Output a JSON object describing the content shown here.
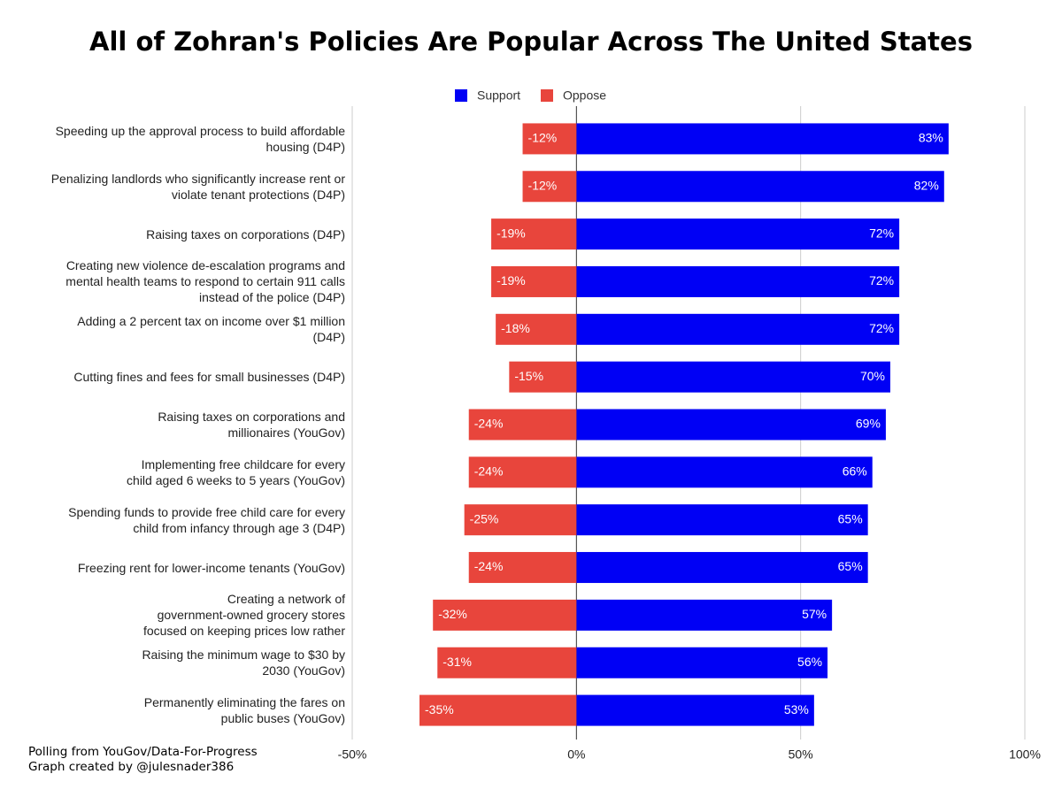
{
  "chart_data": {
    "type": "diverging_bar",
    "title": "All of Zohran's Policies Are Popular Across The United States",
    "categories": [
      "Speeding up the approval process to build affordable\nhousing (D4P)",
      "Penalizing landlords who significantly increase rent or\nviolate tenant protections (D4P)",
      "Raising taxes on corporations (D4P)",
      "Creating new violence de-escalation programs and\nmental health teams to respond to certain 911 calls\ninstead of the police (D4P)",
      "Adding a 2 percent tax on income over $1 million\n(D4P)",
      "Cutting fines and fees for small businesses (D4P)",
      "Raising taxes on corporations and\nmillionaires (YouGov)",
      "Implementing free childcare for every\nchild aged 6 weeks to 5 years (YouGov)",
      "Spending funds to provide free child care for every\nchild from infancy through age 3 (D4P)",
      "Freezing rent for lower-income tenants (YouGov)",
      "Creating a network of\ngovernment-owned grocery stores\nfocused on keeping prices low rather",
      "Raising the minimum wage to $30 by\n2030  (YouGov)",
      "Permanently eliminating the fares on\npublic buses  (YouGov)"
    ],
    "series": [
      {
        "name": "Support",
        "color": "#0000f5",
        "values": [
          83,
          82,
          72,
          72,
          72,
          70,
          69,
          66,
          65,
          65,
          57,
          56,
          53
        ],
        "value_labels": [
          "83%",
          "82%",
          "72%",
          "72%",
          "72%",
          "70%",
          "69%",
          "66%",
          "65%",
          "65%",
          "57%",
          "56%",
          "53%"
        ]
      },
      {
        "name": "Oppose",
        "color": "#e8453c",
        "values": [
          -12,
          -12,
          -19,
          -19,
          -18,
          -15,
          -24,
          -24,
          -25,
          -24,
          -32,
          -31,
          -35
        ],
        "value_labels": [
          "-12%",
          "-12%",
          "-19%",
          "-19%",
          "-18%",
          "-15%",
          "-24%",
          "-24%",
          "-25%",
          "-24%",
          "-32%",
          "-31%",
          "-35%"
        ]
      }
    ],
    "xlim": [
      -50,
      100
    ],
    "xticks": [
      {
        "value": -50,
        "label": "-50%"
      },
      {
        "value": 0,
        "label": "0%"
      },
      {
        "value": 50,
        "label": "50%"
      },
      {
        "value": 100,
        "label": "100%"
      }
    ],
    "grid": true,
    "legend": "top",
    "footnotes": [
      "Polling from YouGov/Data-For-Progress",
      "Graph created by @julesnader386"
    ]
  }
}
